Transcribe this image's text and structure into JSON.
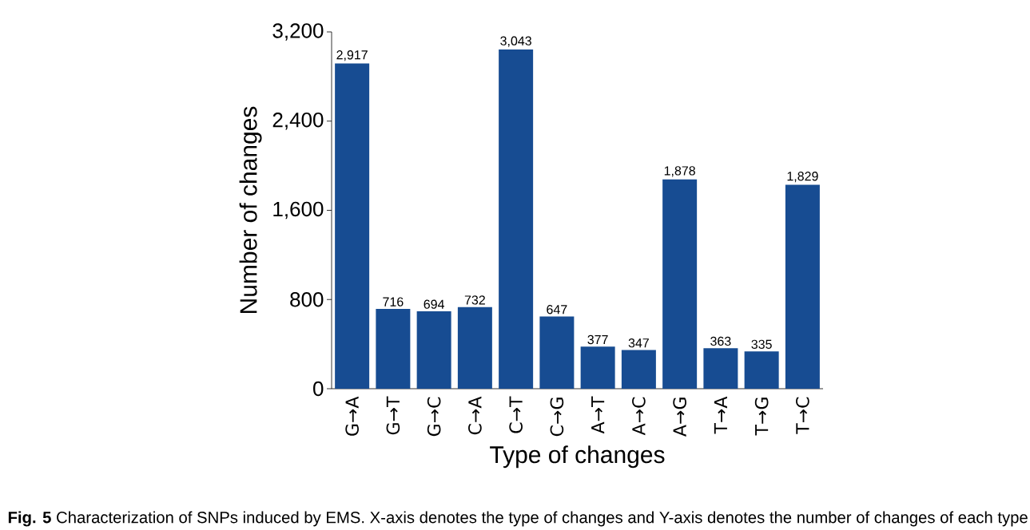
{
  "chart_data": {
    "type": "bar",
    "xlabel": "Type of changes",
    "ylabel": "Number of changes",
    "categories": [
      "G→A",
      "G→T",
      "G→C",
      "C→A",
      "C→T",
      "C→G",
      "A→T",
      "A→C",
      "A→G",
      "T→A",
      "T→G",
      "T→C"
    ],
    "values": [
      2917,
      716,
      694,
      732,
      3043,
      647,
      377,
      347,
      1878,
      363,
      335,
      1829
    ],
    "value_labels": [
      "2,917",
      "716",
      "694",
      "732",
      "3,043",
      "647",
      "377",
      "347",
      "1,878",
      "363",
      "335",
      "1,829"
    ],
    "color": "#174c92",
    "ylim": [
      0,
      3200
    ],
    "yticks": [
      0,
      800,
      {
        "value": 1600,
        "label": "1,600"
      },
      {
        "value": 2400,
        "label": "2,400"
      },
      {
        "value": 3200,
        "label": "3,200"
      }
    ],
    "grid": false,
    "annotations": [
      "**Fig. 5** Characterization of SNPs induced by EMS. X-axis denotes the type of changes and Y-axis denotes the number of changes of each type"
    ]
  }
}
